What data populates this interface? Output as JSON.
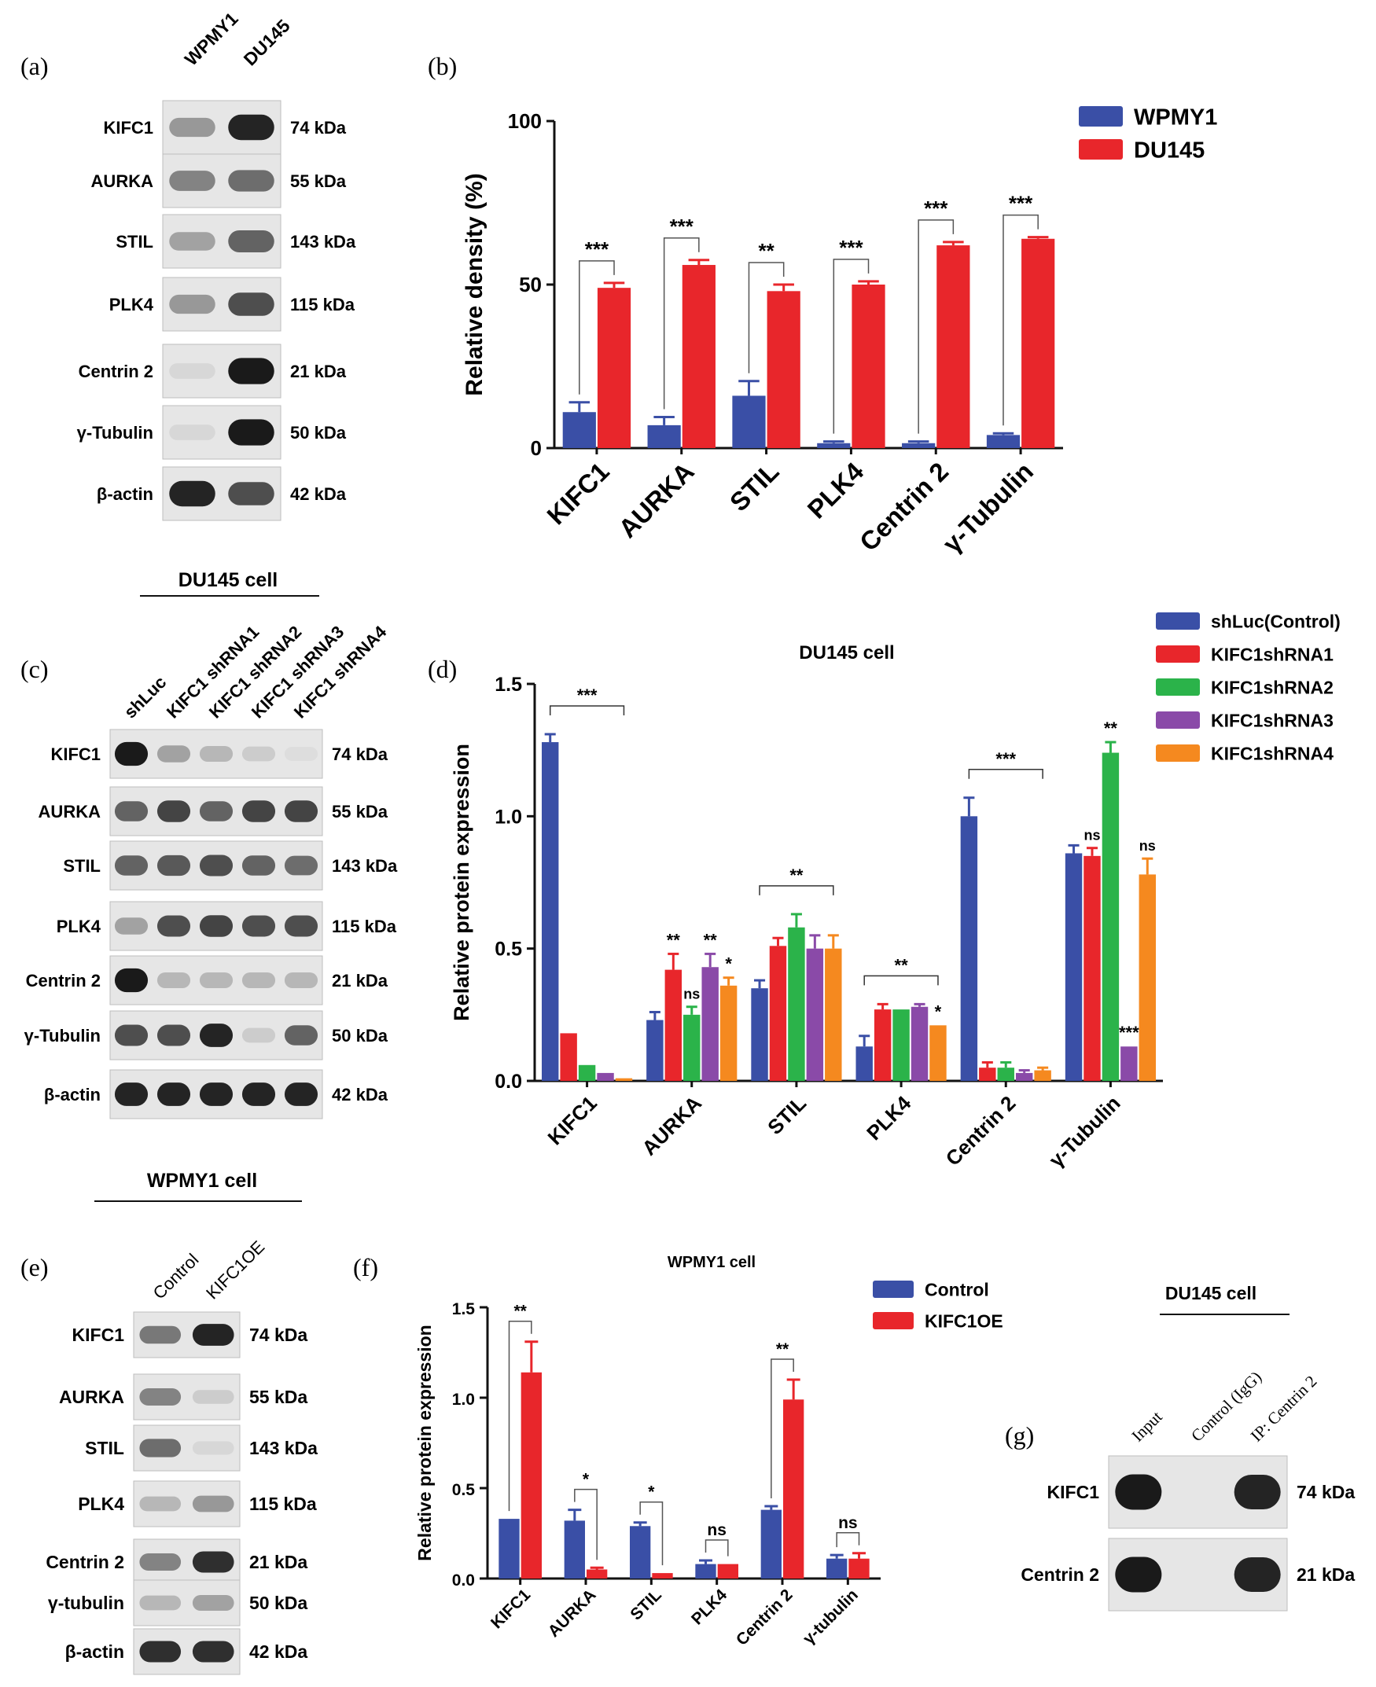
{
  "colors": {
    "wpmy1": "#3a4fa6",
    "du145": "#e8262b",
    "sh1": "#e8262b",
    "sh2": "#2bb34a",
    "sh3": "#8a4aa8",
    "sh4": "#f5891f"
  },
  "panel_a": {
    "label": "(a)",
    "lanes": [
      "WPMY1",
      "DU145"
    ],
    "rows": [
      {
        "protein": "KIFC1",
        "kda": "74 kDa",
        "bands": [
          0.35,
          0.9
        ]
      },
      {
        "protein": "AURKA",
        "kda": "55 kDa",
        "bands": [
          0.45,
          0.55
        ]
      },
      {
        "protein": "STIL",
        "kda": "143 kDa",
        "bands": [
          0.3,
          0.6
        ]
      },
      {
        "protein": "PLK4",
        "kda": "115 kDa",
        "bands": [
          0.35,
          0.7
        ]
      },
      {
        "protein": "Centrin 2",
        "kda": "21 kDa",
        "bands": [
          0.05,
          0.95
        ]
      },
      {
        "protein": "γ-Tubulin",
        "kda": "50 kDa",
        "bands": [
          0.05,
          0.95
        ]
      },
      {
        "protein": "β-actin",
        "kda": "42 kDa",
        "bands": [
          0.9,
          0.7
        ]
      }
    ]
  },
  "panel_c": {
    "label": "(c)",
    "header": "DU145 cell",
    "lanes": [
      "shLuc",
      "KIFC1 shRNA1",
      "KIFC1 shRNA2",
      "KIFC1 shRNA3",
      "KIFC1 shRNA4"
    ],
    "rows": [
      {
        "protein": "KIFC1",
        "kda": "74 kDa",
        "bands": [
          0.95,
          0.3,
          0.2,
          0.1,
          0.02
        ]
      },
      {
        "protein": "AURKA",
        "kda": "55 kDa",
        "bands": [
          0.6,
          0.75,
          0.6,
          0.75,
          0.75
        ]
      },
      {
        "protein": "STIL",
        "kda": "143 kDa",
        "bands": [
          0.6,
          0.65,
          0.7,
          0.6,
          0.55
        ]
      },
      {
        "protein": "PLK4",
        "kda": "115 kDa",
        "bands": [
          0.3,
          0.7,
          0.75,
          0.7,
          0.7
        ]
      },
      {
        "protein": "Centrin 2",
        "kda": "21 kDa",
        "bands": [
          0.95,
          0.2,
          0.2,
          0.2,
          0.2
        ]
      },
      {
        "protein": "γ-Tubulin",
        "kda": "50 kDa",
        "bands": [
          0.7,
          0.7,
          0.9,
          0.1,
          0.6
        ]
      },
      {
        "protein": "β-actin",
        "kda": "42 kDa",
        "bands": [
          0.9,
          0.9,
          0.9,
          0.9,
          0.9
        ]
      }
    ]
  },
  "panel_e": {
    "label": "(e)",
    "header": "WPMY1 cell",
    "lanes": [
      "Control",
      "KIFC1OE"
    ],
    "rows": [
      {
        "protein": "KIFC1",
        "kda": "74 kDa",
        "bands": [
          0.5,
          0.9
        ]
      },
      {
        "protein": "AURKA",
        "kda": "55 kDa",
        "bands": [
          0.45,
          0.1
        ]
      },
      {
        "protein": "STIL",
        "kda": "143 kDa",
        "bands": [
          0.55,
          0.05
        ]
      },
      {
        "protein": "PLK4",
        "kda": "115 kDa",
        "bands": [
          0.2,
          0.35
        ]
      },
      {
        "protein": "Centrin 2",
        "kda": "21 kDa",
        "bands": [
          0.45,
          0.85
        ]
      },
      {
        "protein": "γ-tubulin",
        "kda": "50 kDa",
        "bands": [
          0.2,
          0.3
        ]
      },
      {
        "protein": "β-actin",
        "kda": "42 kDa",
        "bands": [
          0.85,
          0.85
        ]
      }
    ]
  },
  "panel_g": {
    "label": "(g)",
    "header": "DU145 cell",
    "lanes": [
      "Input",
      "Control (IgG)",
      "IP: Centrin 2"
    ],
    "rows": [
      {
        "protein": "KIFC1",
        "kda": "74 kDa",
        "bands": [
          0.95,
          0.0,
          0.9
        ]
      },
      {
        "protein": "Centrin 2",
        "kda": "21 kDa",
        "bands": [
          0.95,
          0.0,
          0.9
        ]
      }
    ]
  },
  "chart_data": [
    {
      "id": "b",
      "label": "(b)",
      "type": "bar",
      "title": "",
      "ylabel": "Relative density (%)",
      "xlabel": "",
      "ylim": [
        0,
        100
      ],
      "yticks": [
        "0",
        "50",
        "100"
      ],
      "categories": [
        "KIFC1",
        "AURKA",
        "STIL",
        "PLK4",
        "Centrin 2",
        "γ-Tubulin"
      ],
      "series": [
        {
          "name": "WPMY1",
          "values": [
            11,
            7,
            16,
            1.5,
            1.5,
            4
          ],
          "errors": [
            3,
            2.5,
            4.5,
            0.5,
            0.5,
            0.5
          ]
        },
        {
          "name": "DU145",
          "values": [
            49,
            56,
            48,
            50,
            62,
            64
          ],
          "errors": [
            1.5,
            1.5,
            2,
            1,
            1,
            0.5
          ]
        }
      ],
      "significance": [
        "***",
        "***",
        "**",
        "***",
        "***",
        "***"
      ],
      "legend": "top-right"
    },
    {
      "id": "d",
      "label": "(d)",
      "type": "bar",
      "title": "DU145 cell",
      "ylabel": "Relative protein expression",
      "xlabel": "",
      "ylim": [
        0,
        1.5
      ],
      "yticks": [
        "0.0",
        "0.5",
        "1.0",
        "1.5"
      ],
      "categories": [
        "KIFC1",
        "AURKA",
        "STIL",
        "PLK4",
        "Centrin 2",
        "γ-Tubulin"
      ],
      "series": [
        {
          "name": "shLuc(Control)",
          "values": [
            1.28,
            0.23,
            0.35,
            0.13,
            1.0,
            0.86
          ],
          "errors": [
            0.03,
            0.03,
            0.03,
            0.04,
            0.07,
            0.03
          ]
        },
        {
          "name": "KIFC1shRNA1",
          "values": [
            0.18,
            0.42,
            0.51,
            0.27,
            0.05,
            0.85
          ],
          "errors": [
            0.0,
            0.06,
            0.03,
            0.02,
            0.02,
            0.03
          ]
        },
        {
          "name": "KIFC1shRNA2",
          "values": [
            0.06,
            0.25,
            0.58,
            0.27,
            0.05,
            1.24
          ],
          "errors": [
            0.0,
            0.03,
            0.05,
            0.0,
            0.02,
            0.04
          ]
        },
        {
          "name": "KIFC1shRNA3",
          "values": [
            0.03,
            0.43,
            0.5,
            0.28,
            0.03,
            0.13
          ],
          "errors": [
            0.0,
            0.05,
            0.05,
            0.01,
            0.01,
            0.0
          ]
        },
        {
          "name": "KIFC1shRNA4",
          "values": [
            0.01,
            0.36,
            0.5,
            0.21,
            0.04,
            0.78
          ],
          "errors": [
            0.0,
            0.03,
            0.05,
            0.0,
            0.01,
            0.06
          ]
        }
      ],
      "annotations": [
        {
          "text": "***",
          "category": 0
        },
        {
          "text": "**",
          "category": 1,
          "series": 1
        },
        {
          "text": "ns",
          "category": 1,
          "series": 2
        },
        {
          "text": "**",
          "category": 1,
          "series": 3
        },
        {
          "text": "*",
          "category": 1,
          "series": 4
        },
        {
          "text": "**",
          "category": 2
        },
        {
          "text": "**",
          "category": 3
        },
        {
          "text": "*",
          "category": 3,
          "series": 4
        },
        {
          "text": "***",
          "category": 4
        },
        {
          "text": "ns",
          "category": 5,
          "series": 1
        },
        {
          "text": "**",
          "category": 5,
          "series": 2
        },
        {
          "text": "***",
          "category": 5,
          "series": 3
        },
        {
          "text": "ns",
          "category": 5,
          "series": 4
        }
      ],
      "legend": "top-right"
    },
    {
      "id": "f",
      "label": "(f)",
      "type": "bar",
      "title": "WPMY1 cell",
      "ylabel": "Relative protein expression",
      "xlabel": "",
      "ylim": [
        0,
        1.5
      ],
      "yticks": [
        "0.0",
        "0.5",
        "1.0",
        "1.5"
      ],
      "categories": [
        "KIFC1",
        "AURKA",
        "STIL",
        "PLK4",
        "Centrin 2",
        "γ-tubulin"
      ],
      "series": [
        {
          "name": "Control",
          "values": [
            0.33,
            0.32,
            0.29,
            0.08,
            0.38,
            0.11
          ],
          "errors": [
            0.0,
            0.06,
            0.02,
            0.02,
            0.02,
            0.02
          ]
        },
        {
          "name": "KIFC1OE",
          "values": [
            1.14,
            0.05,
            0.03,
            0.08,
            0.99,
            0.11
          ],
          "errors": [
            0.17,
            0.01,
            0.0,
            0.0,
            0.11,
            0.03
          ]
        }
      ],
      "significance": [
        "**",
        "*",
        "*",
        "ns",
        "**",
        "ns"
      ],
      "legend": "top-right"
    }
  ]
}
